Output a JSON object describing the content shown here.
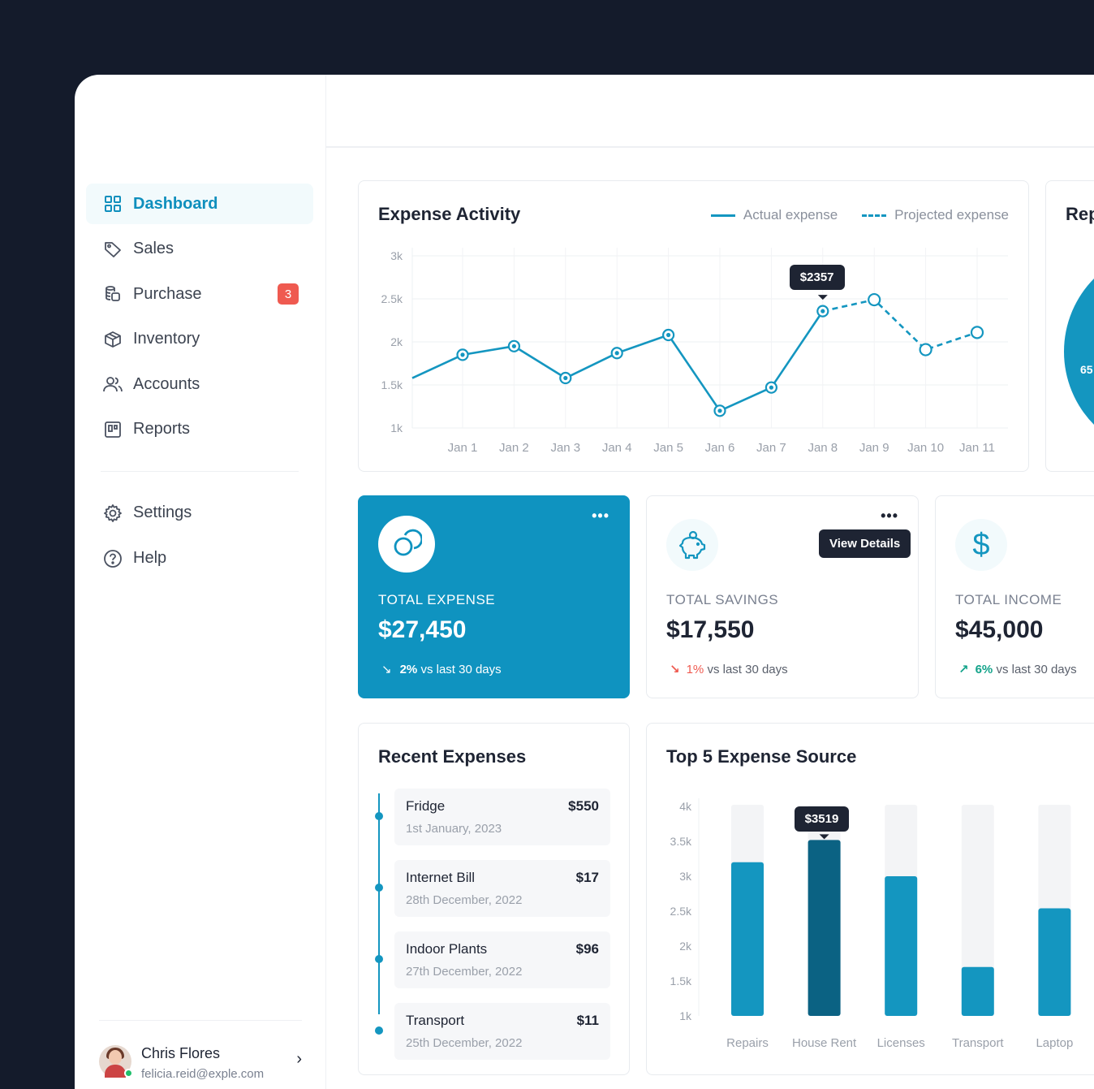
{
  "nav": {
    "items": [
      {
        "label": "Dashboard",
        "active": true
      },
      {
        "label": "Sales"
      },
      {
        "label": "Purchase",
        "badge": "3"
      },
      {
        "label": "Inventory"
      },
      {
        "label": "Accounts"
      },
      {
        "label": "Reports"
      }
    ],
    "secondary": [
      {
        "label": "Settings"
      },
      {
        "label": "Help"
      }
    ]
  },
  "user": {
    "name": "Chris Flores",
    "email": "felicia.reid@exple.com"
  },
  "expense_activity": {
    "title": "Expense Activity",
    "legend_actual": "Actual expense",
    "legend_projected": "Projected expense",
    "tooltip": "$2357"
  },
  "stats": {
    "total_expense": {
      "label": "TOTAL EXPENSE",
      "value": "$27,450",
      "change": "2%",
      "suffix": "vs last 30 days"
    },
    "total_savings": {
      "label": "TOTAL SAVINGS",
      "value": "$17,550",
      "change": "1%",
      "suffix": "vs last 30 days",
      "tooltip": "View Details"
    },
    "total_income": {
      "label": "TOTAL INCOME",
      "value": "$45,000",
      "change": "6%",
      "suffix": "vs last 30 days"
    }
  },
  "report_card": {
    "title": "Rep",
    "pie_label": "65"
  },
  "recent_expenses": {
    "title": "Recent Expenses",
    "items": [
      {
        "name": "Fridge",
        "date": "1st January, 2023",
        "amount": "$550"
      },
      {
        "name": "Internet Bill",
        "date": "28th December, 2022",
        "amount": "$17"
      },
      {
        "name": "Indoor Plants",
        "date": "27th December, 2022",
        "amount": "$96"
      },
      {
        "name": "Transport",
        "date": "25th December, 2022",
        "amount": "$11"
      }
    ]
  },
  "top_sources": {
    "title": "Top 5 Expense Source",
    "tooltip": "$3519"
  },
  "colors": {
    "accent": "#1496c0",
    "accent_dark": "#0b6283",
    "danger": "#ef5a50",
    "success": "#13a38a"
  },
  "chart_data": [
    {
      "type": "line",
      "title": "Expense Activity",
      "x": [
        "Jan 1",
        "Jan 2",
        "Jan 3",
        "Jan 4",
        "Jan 5",
        "Jan 6",
        "Jan 7",
        "Jan 8",
        "Jan 9",
        "Jan 10",
        "Jan 11"
      ],
      "yticks": [
        "1k",
        "1.5k",
        "2k",
        "2.5k",
        "3k"
      ],
      "ylim": [
        1000,
        3000
      ],
      "start_value": 1580,
      "series": [
        {
          "name": "Actual expense",
          "values": [
            1850,
            1950,
            1580,
            1870,
            2080,
            1200,
            1470,
            2357,
            null,
            null,
            null
          ]
        },
        {
          "name": "Projected expense",
          "values": [
            null,
            null,
            null,
            null,
            null,
            null,
            null,
            2357,
            2490,
            1910,
            2110
          ]
        }
      ],
      "grid": true,
      "legend": "top-right"
    },
    {
      "type": "bar",
      "title": "Top 5 Expense Source",
      "categories": [
        "Repairs",
        "House Rent",
        "Licenses",
        "Transport",
        "Laptop"
      ],
      "values": [
        3200,
        3519,
        3000,
        1700,
        2540
      ],
      "yticks": [
        "1k",
        "1.5k",
        "2k",
        "2.5k",
        "3k",
        "3.5k",
        "4k"
      ],
      "ylim": [
        1000,
        4000
      ],
      "highlight": "House Rent"
    }
  ]
}
